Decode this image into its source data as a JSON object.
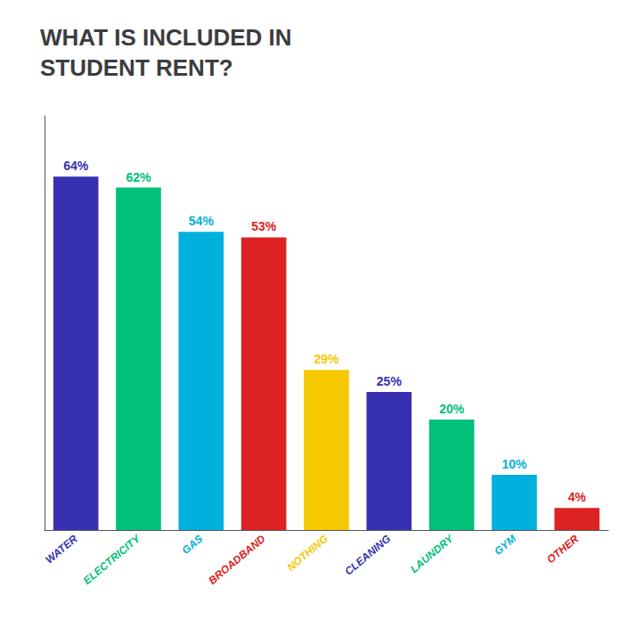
{
  "chart_data": {
    "type": "bar",
    "title": "WHAT IS INCLUDED IN\nSTUDENT RENT?",
    "categories": [
      "WATER",
      "ELECTRICITY",
      "GAS",
      "BROADBAND",
      "NOTHING",
      "CLEANING",
      "LAUNDRY",
      "GYM",
      "OTHER"
    ],
    "values": [
      64,
      62,
      54,
      53,
      29,
      25,
      20,
      10,
      4
    ],
    "value_labels": [
      "64%",
      "62%",
      "54%",
      "53%",
      "29%",
      "25%",
      "20%",
      "10%",
      "4%"
    ],
    "colors": [
      "#3730b0",
      "#00c07a",
      "#00b0dd",
      "#dd2222",
      "#f5c800",
      "#3730b0",
      "#00c07a",
      "#00b0dd",
      "#dd2222"
    ],
    "ylim": [
      0,
      75
    ],
    "grid": false,
    "data_labels": true,
    "tick_labels": "x"
  }
}
